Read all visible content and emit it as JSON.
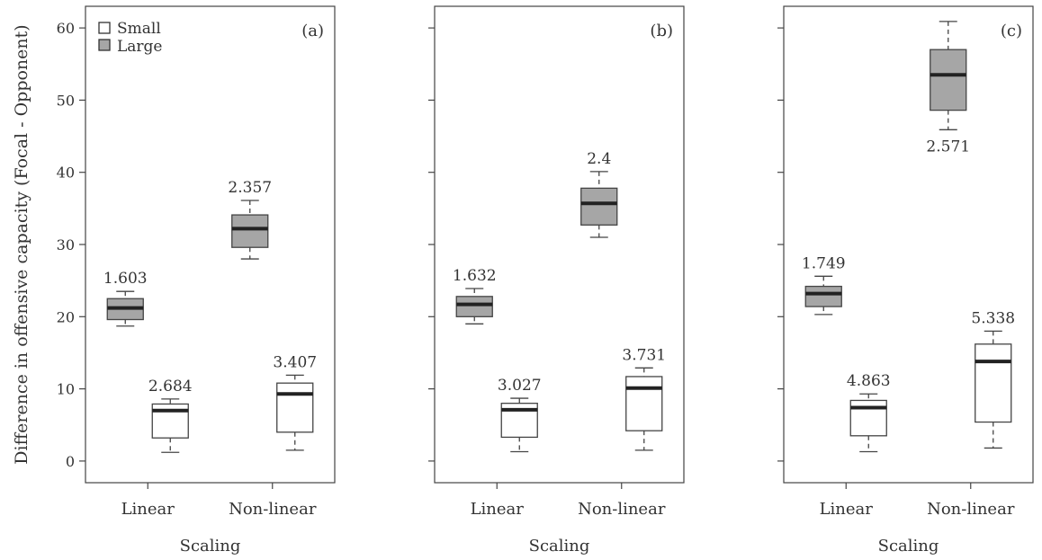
{
  "figure": {
    "ylabel": "Difference in offensive capacity (Focal - Opponent)",
    "xlabel": "Scaling",
    "yticks": [
      0,
      10,
      20,
      30,
      40,
      50,
      60
    ],
    "legend": {
      "placement": "top-left",
      "items": [
        {
          "label": "Small",
          "color": "#ffffff"
        },
        {
          "label": "Large",
          "color": "#a6a6a6"
        }
      ]
    }
  },
  "chart_data": [
    {
      "type": "box",
      "panel_label": "(a)",
      "categories": [
        "Linear",
        "Non-linear"
      ],
      "ylim": [
        -3,
        63
      ],
      "groups": [
        {
          "category": "Linear",
          "series": "Large",
          "whisker_low": 18.7,
          "q1": 19.6,
          "median": 21.2,
          "q3": 22.5,
          "whisker_high": 23.5,
          "annotation": "1.603"
        },
        {
          "category": "Linear",
          "series": "Small",
          "whisker_low": 1.2,
          "q1": 3.2,
          "median": 7.0,
          "q3": 7.9,
          "whisker_high": 8.6,
          "annotation": "2.684"
        },
        {
          "category": "Non-linear",
          "series": "Large",
          "whisker_low": 28.0,
          "q1": 29.6,
          "median": 32.2,
          "q3": 34.1,
          "whisker_high": 36.1,
          "annotation": "2.357"
        },
        {
          "category": "Non-linear",
          "series": "Small",
          "whisker_low": 1.5,
          "q1": 4.0,
          "median": 9.3,
          "q3": 10.8,
          "whisker_high": 11.9,
          "annotation": "3.407"
        }
      ]
    },
    {
      "type": "box",
      "panel_label": "(b)",
      "categories": [
        "Linear",
        "Non-linear"
      ],
      "ylim": [
        -3,
        63
      ],
      "groups": [
        {
          "category": "Linear",
          "series": "Large",
          "whisker_low": 19.0,
          "q1": 20.0,
          "median": 21.7,
          "q3": 22.8,
          "whisker_high": 23.9,
          "annotation": "1.632"
        },
        {
          "category": "Linear",
          "series": "Small",
          "whisker_low": 1.3,
          "q1": 3.3,
          "median": 7.1,
          "q3": 8.0,
          "whisker_high": 8.7,
          "annotation": "3.027"
        },
        {
          "category": "Non-linear",
          "series": "Large",
          "whisker_low": 31.0,
          "q1": 32.7,
          "median": 35.7,
          "q3": 37.8,
          "whisker_high": 40.1,
          "annotation": "2.4"
        },
        {
          "category": "Non-linear",
          "series": "Small",
          "whisker_low": 1.5,
          "q1": 4.2,
          "median": 10.1,
          "q3": 11.7,
          "whisker_high": 12.9,
          "annotation": "3.731"
        }
      ]
    },
    {
      "type": "box",
      "panel_label": "(c)",
      "categories": [
        "Linear",
        "Non-linear"
      ],
      "ylim": [
        -3,
        63
      ],
      "groups": [
        {
          "category": "Linear",
          "series": "Large",
          "whisker_low": 20.3,
          "q1": 21.4,
          "median": 23.2,
          "q3": 24.2,
          "whisker_high": 25.6,
          "annotation": "1.749"
        },
        {
          "category": "Linear",
          "series": "Small",
          "whisker_low": 1.3,
          "q1": 3.5,
          "median": 7.4,
          "q3": 8.4,
          "whisker_high": 9.3,
          "annotation": "4.863"
        },
        {
          "category": "Non-linear",
          "series": "Large",
          "whisker_low": 45.9,
          "q1": 48.6,
          "median": 53.5,
          "q3": 57.0,
          "whisker_high": 60.9,
          "annotation": "2.571"
        },
        {
          "category": "Non-linear",
          "series": "Small",
          "whisker_low": 1.8,
          "q1": 5.4,
          "median": 13.8,
          "q3": 16.2,
          "whisker_high": 18.0,
          "annotation": "5.338"
        }
      ]
    }
  ]
}
